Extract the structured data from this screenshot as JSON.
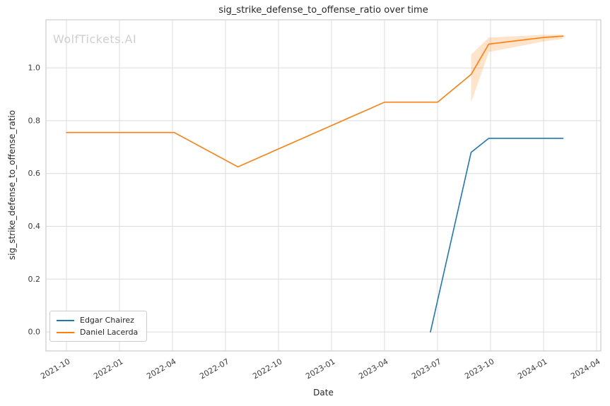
{
  "watermark": "WolfTickets.AI",
  "chart_data": {
    "type": "line",
    "title": "sig_strike_defense_to_offense_ratio over time",
    "xlabel": "Date",
    "ylabel": "sig_strike_defense_to_offense_ratio",
    "x_unit": "months since 2021-10",
    "x_ticks": [
      0,
      3,
      6,
      9,
      12,
      15,
      18,
      21,
      24,
      27,
      30
    ],
    "x_tick_labels": [
      "2021-10",
      "2022-01",
      "2022-04",
      "2022-07",
      "2022-10",
      "2023-01",
      "2023-04",
      "2023-07",
      "2023-10",
      "2024-01",
      "2024-04"
    ],
    "y_ticks": [
      0.0,
      0.2,
      0.4,
      0.6,
      0.8,
      1.0
    ],
    "xlim": [
      -1.16,
      30.24
    ],
    "ylim": [
      -0.072,
      1.182
    ],
    "grid": true,
    "grid_color": "#dcdcdc",
    "spine_color": "#cccccc",
    "legend_position": "lower left",
    "series": [
      {
        "name": "Edgar Chairez",
        "color": "#1f77b4",
        "x": [
          20.6,
          22.9,
          23.9,
          28.1
        ],
        "y": [
          0.0,
          0.68,
          0.733,
          0.733
        ]
      },
      {
        "name": "Daniel Lacerda",
        "color": "#ff7f0e",
        "x": [
          0,
          6.1,
          9.7,
          18,
          21,
          22.9,
          23.9,
          27,
          28.1
        ],
        "y": [
          0.755,
          0.755,
          0.625,
          0.87,
          0.87,
          0.975,
          1.09,
          1.115,
          1.12
        ]
      }
    ],
    "bands": [
      {
        "series": "Daniel Lacerda",
        "color": "#ff7f0e",
        "opacity": 0.22,
        "x": [
          22.9,
          23.9,
          27,
          28.1
        ],
        "lower": [
          0.87,
          1.06,
          1.1,
          1.11
        ],
        "upper": [
          1.05,
          1.115,
          1.125,
          1.125
        ]
      }
    ]
  },
  "legend": {
    "items": [
      {
        "label": "Edgar Chairez",
        "color": "#1f77b4"
      },
      {
        "label": "Daniel Lacerda",
        "color": "#ff7f0e"
      }
    ]
  }
}
